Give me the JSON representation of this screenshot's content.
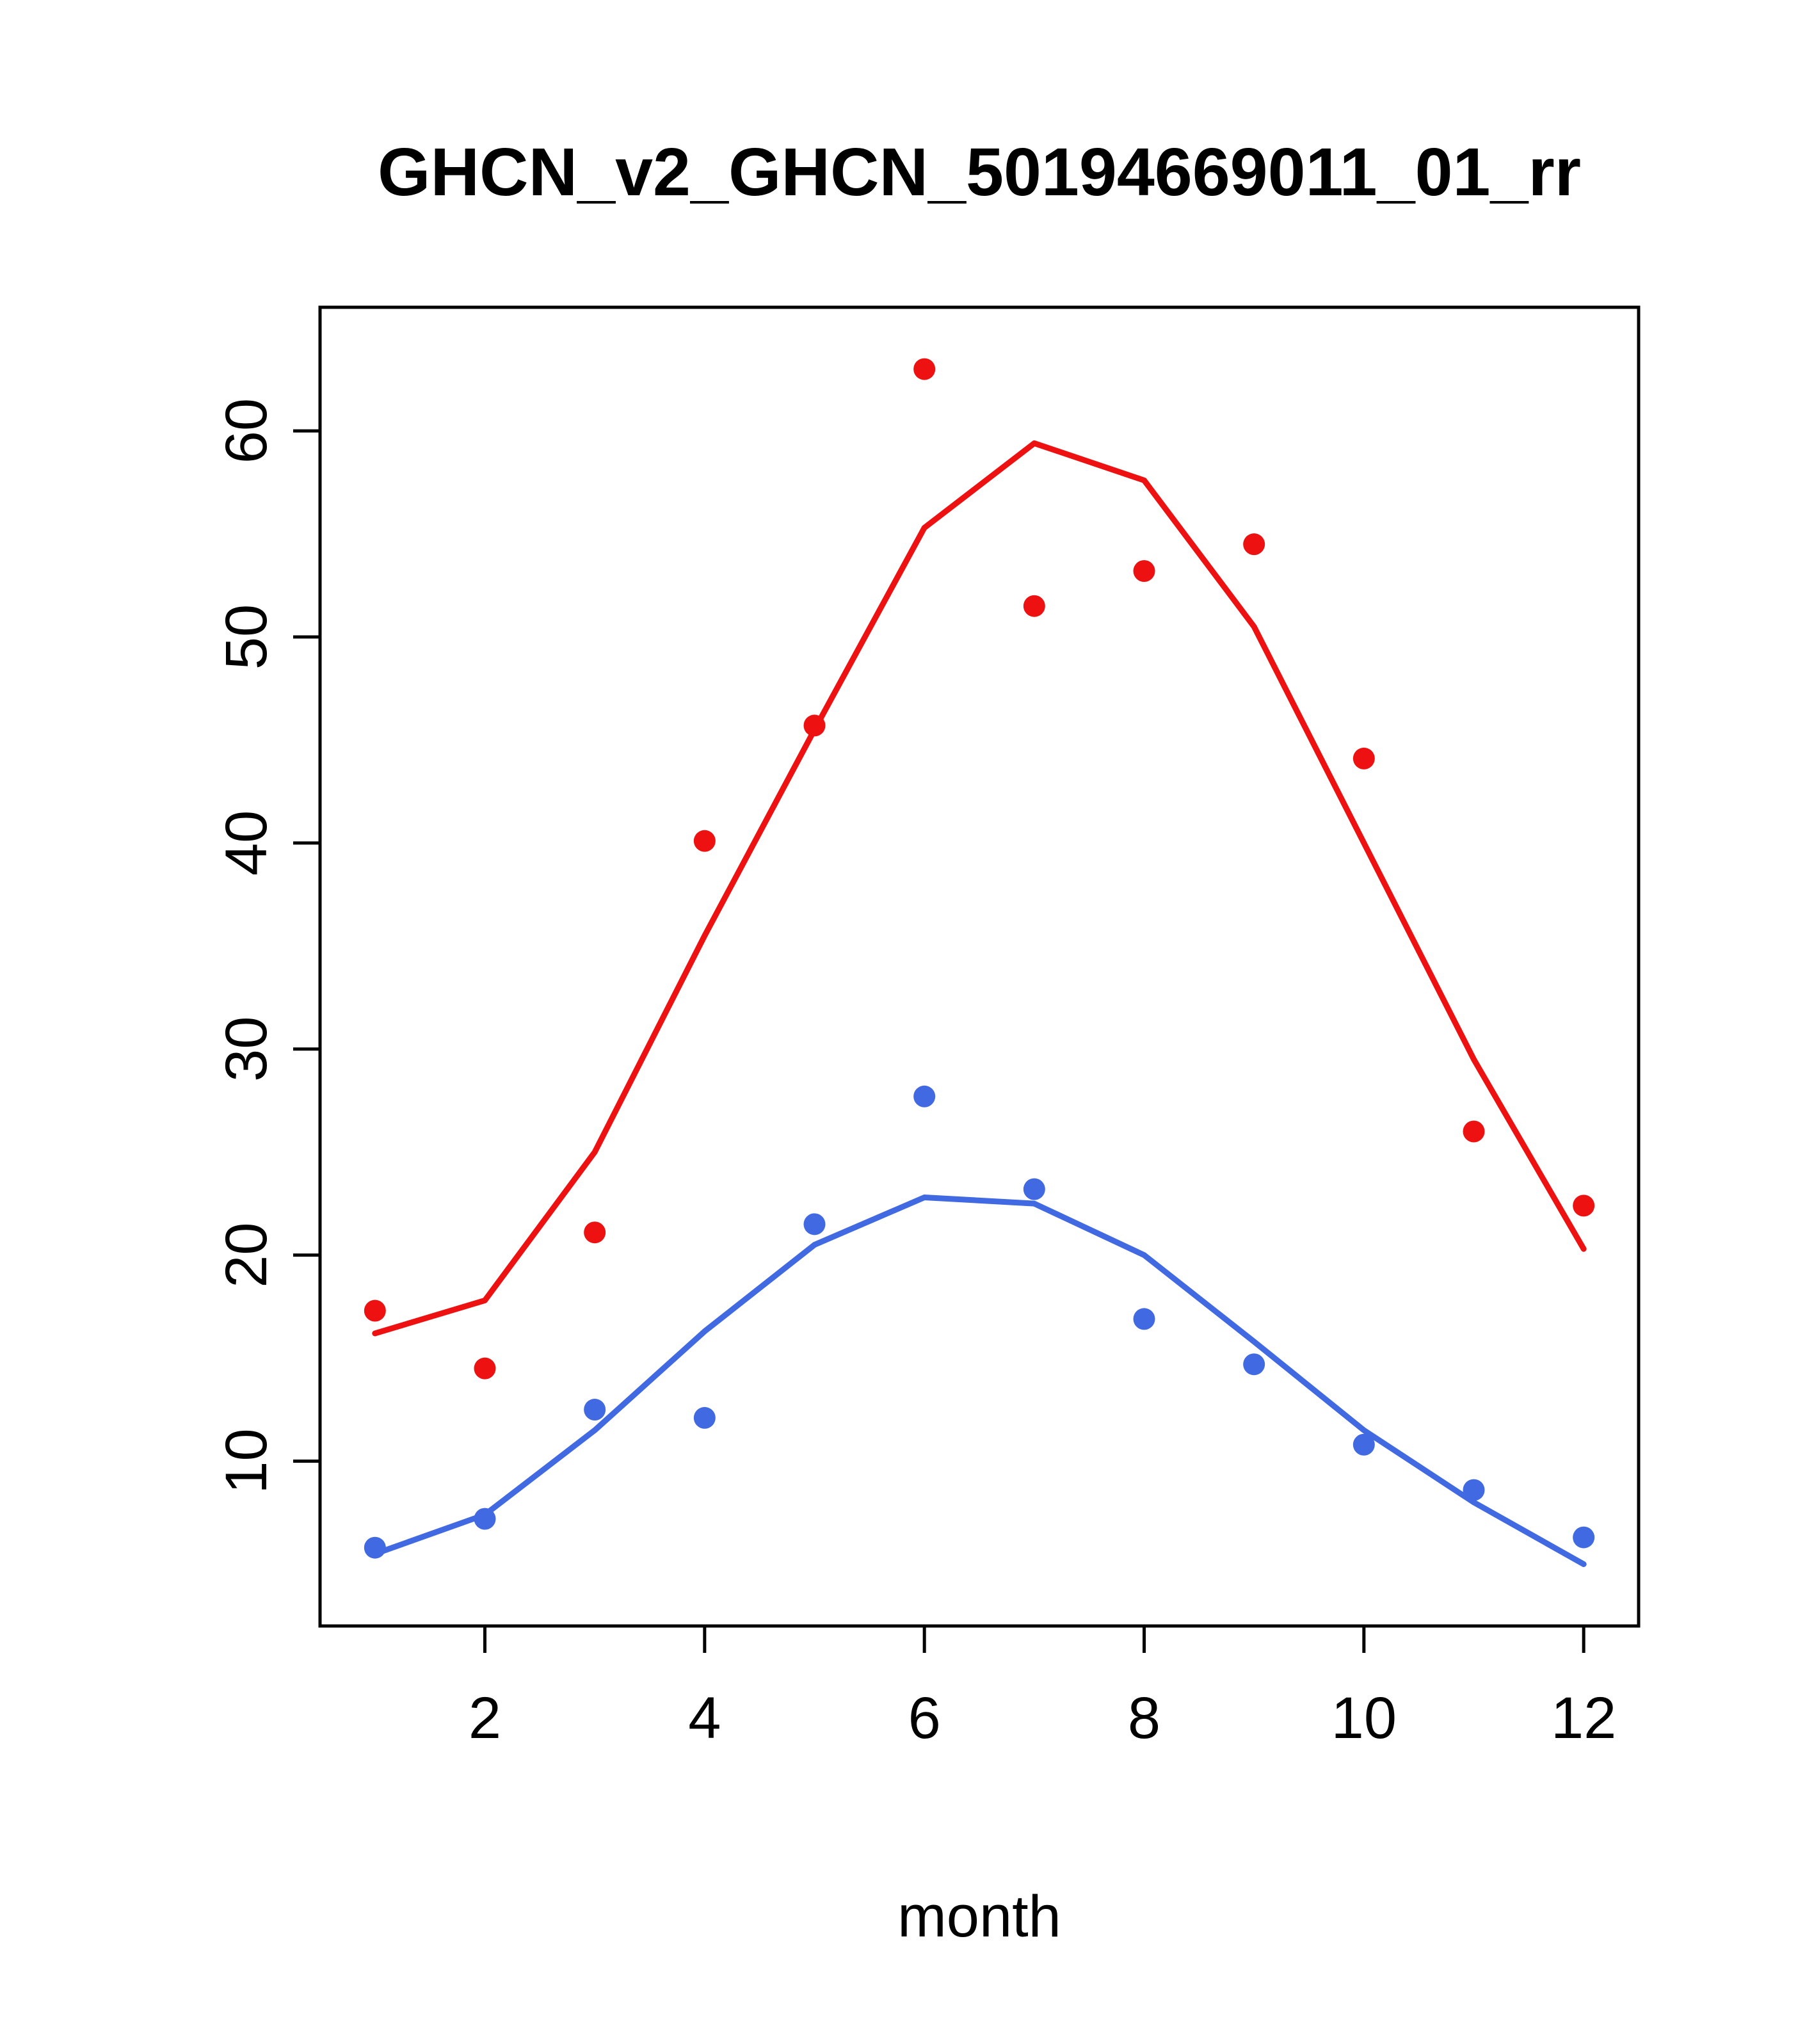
{
  "chart_data": {
    "type": "scatter",
    "title": "GHCN_v2_GHCN_50194669011_01_rr",
    "xlabel": "month",
    "ylabel": "",
    "x": [
      1,
      2,
      3,
      4,
      5,
      6,
      7,
      8,
      9,
      10,
      11,
      12
    ],
    "xticks": [
      2,
      4,
      6,
      8,
      10,
      12
    ],
    "yticks": [
      10,
      20,
      30,
      40,
      50,
      60
    ],
    "xlim": [
      0.5,
      12.5
    ],
    "ylim": [
      2,
      66
    ],
    "grid": false,
    "legend": "none",
    "colors": {
      "red_series": "#ee1111",
      "blue_series": "#4169e1",
      "axis": "#000000"
    },
    "series": [
      {
        "name": "red-line",
        "type": "line",
        "color": "#ee1111",
        "values": [
          16.2,
          17.8,
          25.0,
          35.5,
          45.5,
          55.3,
          59.4,
          57.6,
          50.5,
          40.0,
          29.5,
          20.3
        ]
      },
      {
        "name": "red-points",
        "type": "points",
        "color": "#ee1111",
        "values": [
          17.3,
          14.5,
          21.1,
          40.1,
          45.7,
          63.0,
          51.5,
          53.2,
          54.5,
          44.1,
          26.0,
          22.4
        ]
      },
      {
        "name": "blue-line",
        "type": "line",
        "color": "#4169e1",
        "values": [
          5.5,
          7.4,
          11.5,
          16.3,
          20.5,
          22.8,
          22.5,
          20.0,
          15.8,
          11.5,
          8.0,
          5.0
        ]
      },
      {
        "name": "blue-points",
        "type": "points",
        "color": "#4169e1",
        "values": [
          5.8,
          7.2,
          12.5,
          12.1,
          21.5,
          27.7,
          23.2,
          16.9,
          14.7,
          10.8,
          8.6,
          6.3
        ]
      }
    ]
  }
}
